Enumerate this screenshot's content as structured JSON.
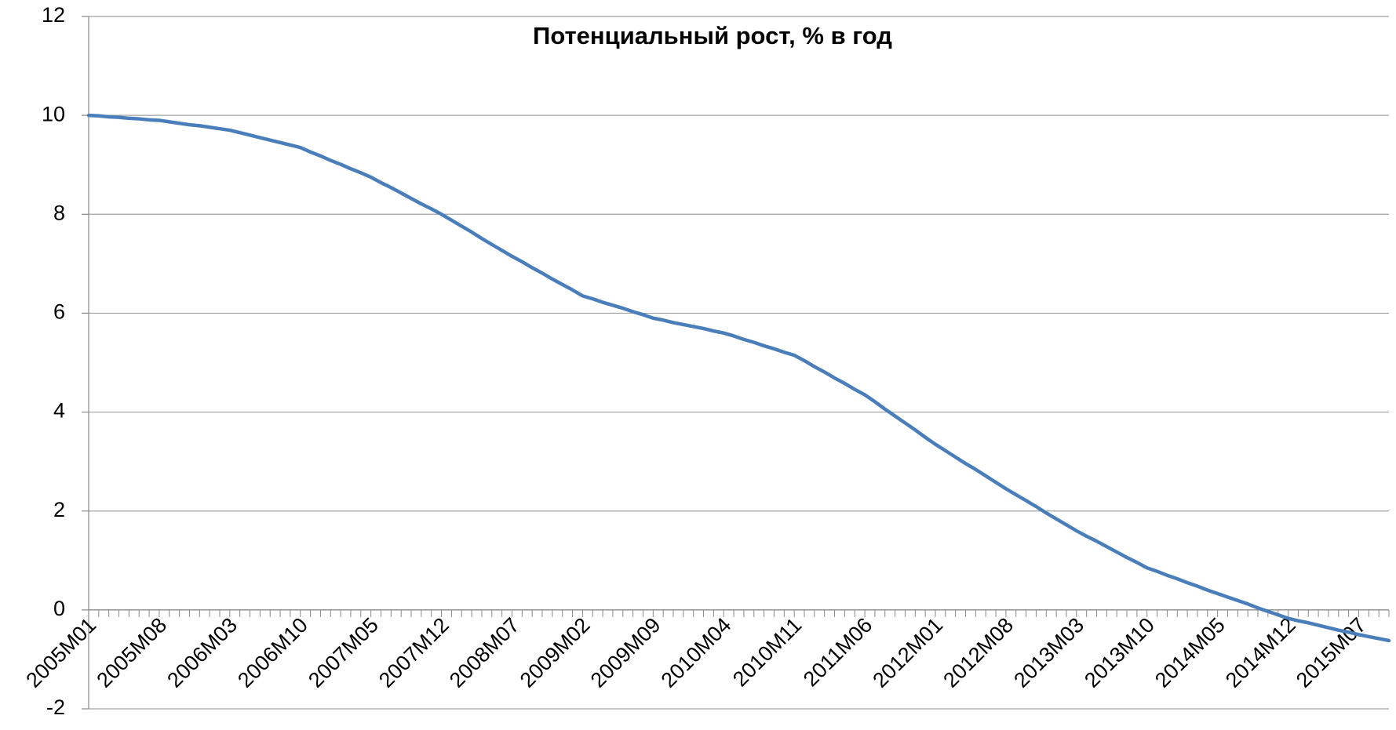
{
  "chart_data": {
    "type": "line",
    "title": "Потенциальный рост, % в год",
    "categories": [
      "2005M01",
      null,
      null,
      null,
      null,
      null,
      null,
      "2005M08",
      null,
      null,
      null,
      null,
      null,
      null,
      "2006M03",
      null,
      null,
      null,
      null,
      null,
      null,
      "2006M10",
      null,
      null,
      null,
      null,
      null,
      null,
      "2007M05",
      null,
      null,
      null,
      null,
      null,
      null,
      "2007M12",
      null,
      null,
      null,
      null,
      null,
      null,
      "2008M07",
      null,
      null,
      null,
      null,
      null,
      null,
      "2009M02",
      null,
      null,
      null,
      null,
      null,
      null,
      "2009M09",
      null,
      null,
      null,
      null,
      null,
      null,
      "2010M04",
      null,
      null,
      null,
      null,
      null,
      null,
      "2010M11",
      null,
      null,
      null,
      null,
      null,
      null,
      "2011M06",
      null,
      null,
      null,
      null,
      null,
      null,
      "2012M01",
      null,
      null,
      null,
      null,
      null,
      null,
      "2012M08",
      null,
      null,
      null,
      null,
      null,
      null,
      "2013M03",
      null,
      null,
      null,
      null,
      null,
      null,
      "2013M10",
      null,
      null,
      null,
      null,
      null,
      null,
      "2014M05",
      null,
      null,
      null,
      null,
      null,
      null,
      "2014M12",
      null,
      null,
      null,
      null,
      null,
      null,
      "2015M07",
      null,
      null,
      null
    ],
    "values": [
      10,
      9.99,
      9.97,
      9.96,
      9.94,
      9.93,
      9.91,
      9.9,
      9.87,
      9.84,
      9.81,
      9.79,
      9.76,
      9.73,
      9.7,
      9.65,
      9.6,
      9.55,
      9.5,
      9.45,
      9.4,
      9.35,
      9.26,
      9.18,
      9.09,
      9.01,
      8.92,
      8.84,
      8.75,
      8.64,
      8.54,
      8.43,
      8.32,
      8.21,
      8.11,
      8.0,
      7.88,
      7.76,
      7.64,
      7.51,
      7.39,
      7.27,
      7.15,
      7.04,
      6.92,
      6.81,
      6.69,
      6.58,
      6.47,
      6.35,
      6.29,
      6.22,
      6.16,
      6.1,
      6.03,
      5.97,
      5.9,
      5.86,
      5.81,
      5.77,
      5.73,
      5.69,
      5.64,
      5.6,
      5.54,
      5.47,
      5.41,
      5.34,
      5.28,
      5.21,
      5.15,
      5.04,
      4.92,
      4.81,
      4.69,
      4.58,
      4.46,
      4.35,
      4.21,
      4.06,
      3.92,
      3.78,
      3.64,
      3.49,
      3.35,
      3.22,
      3.09,
      2.96,
      2.84,
      2.71,
      2.58,
      2.45,
      2.33,
      2.21,
      2.09,
      1.96,
      1.84,
      1.72,
      1.6,
      1.49,
      1.39,
      1.28,
      1.17,
      1.06,
      0.96,
      0.85,
      0.78,
      0.7,
      0.63,
      0.55,
      0.48,
      0.4,
      0.33,
      0.26,
      0.19,
      0.12,
      0.04,
      -0.03,
      -0.1,
      -0.17,
      -0.22,
      -0.26,
      -0.31,
      -0.36,
      -0.41,
      -0.45,
      -0.5,
      -0.54,
      -0.58,
      -0.62
    ],
    "color": "#4a7ebb",
    "ylim": [
      -2,
      12
    ],
    "yticks": [
      -2,
      0,
      2,
      4,
      6,
      8,
      10,
      12
    ],
    "grid": true
  }
}
